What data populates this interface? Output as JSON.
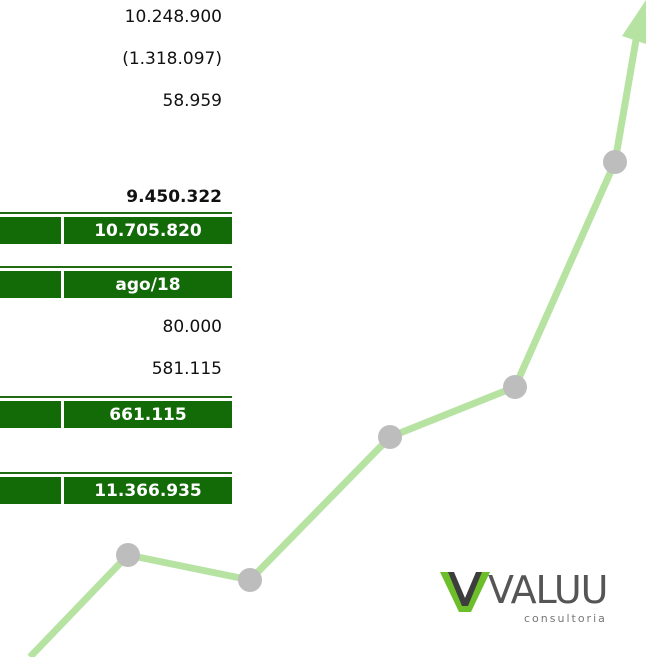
{
  "rows": [
    "10.248.900",
    "(1.318.097)",
    "58.959",
    "9.450.322",
    "10.705.820",
    "ago/18",
    "80.000",
    "581.115",
    "661.115",
    "11.366.935"
  ],
  "logo": {
    "name": "VALUU",
    "tagline": "consultoria"
  }
}
